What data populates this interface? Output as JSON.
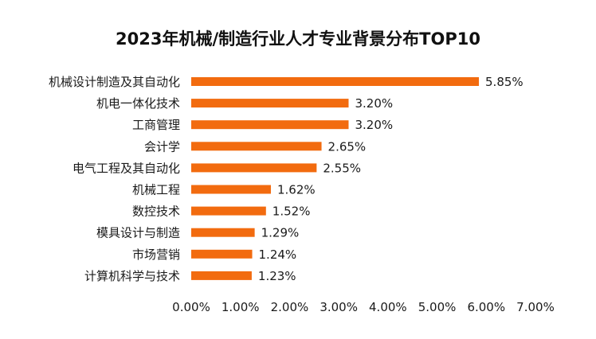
{
  "chart_data": {
    "type": "bar",
    "orientation": "horizontal",
    "title": "2023年机械/制造行业人才专业背景分布TOP10",
    "categories": [
      "机械设计制造及其自动化",
      "机电一体化技术",
      "工商管理",
      "会计学",
      "电气工程及其自动化",
      "机械工程",
      "数控技术",
      "模具设计与制造",
      "市场营销",
      "计算机科学与技术"
    ],
    "values": [
      5.85,
      3.2,
      3.2,
      2.65,
      2.55,
      1.62,
      1.52,
      1.29,
      1.24,
      1.23
    ],
    "value_labels": [
      "5.85%",
      "3.20%",
      "3.20%",
      "2.65%",
      "2.55%",
      "1.62%",
      "1.52%",
      "1.29%",
      "1.24%",
      "1.23%"
    ],
    "x_ticks": [
      "0.00%",
      "1.00%",
      "2.00%",
      "3.00%",
      "4.00%",
      "5.00%",
      "6.00%",
      "7.00%"
    ],
    "xlim": [
      0,
      7
    ],
    "xlabel": "",
    "ylabel": "",
    "grid": false,
    "legend": "none",
    "bar_color": "#F26B0F"
  }
}
